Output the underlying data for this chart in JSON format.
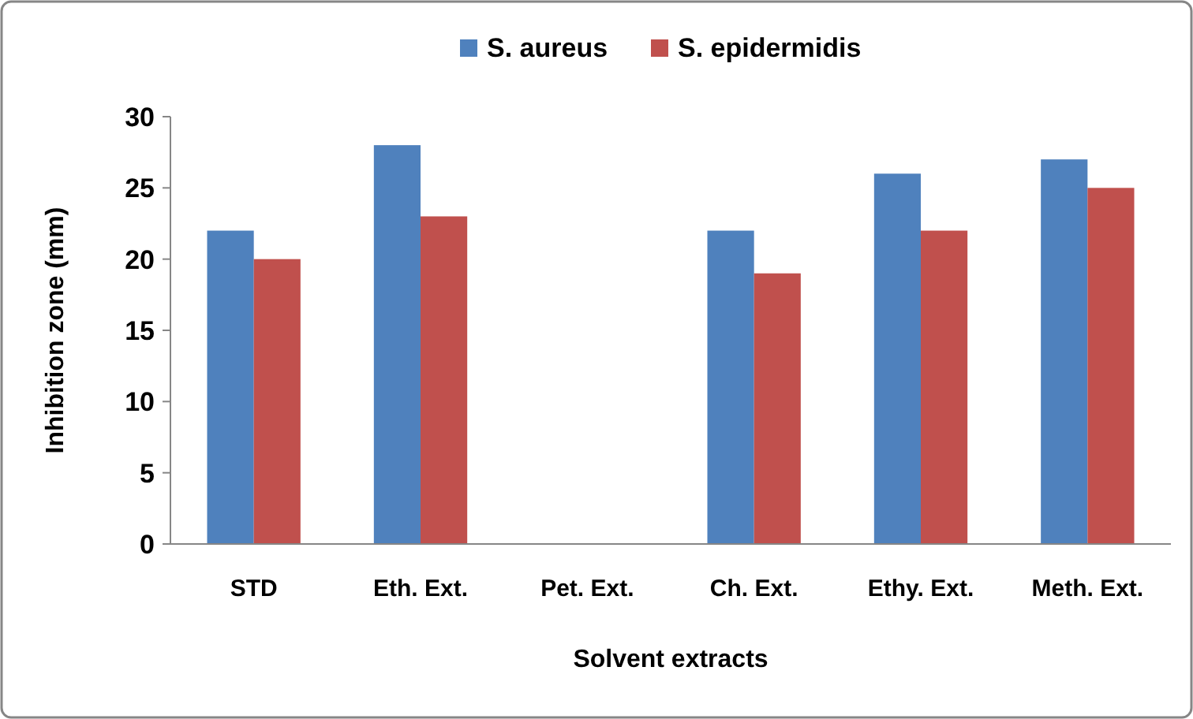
{
  "chart_data": {
    "type": "bar",
    "xlabel": "Solvent extracts",
    "ylabel": "Inhibition zone (mm)",
    "categories": [
      "STD",
      "Eth. Ext.",
      "Pet. Ext.",
      "Ch. Ext.",
      "Ethy. Ext.",
      "Meth. Ext."
    ],
    "series": [
      {
        "name": "S. aureus",
        "color": "#4f81bd",
        "values": [
          22,
          28,
          0,
          22,
          26,
          27
        ]
      },
      {
        "name": "S. epidermidis",
        "color": "#c0504d",
        "values": [
          20,
          23,
          0,
          19,
          22,
          25
        ]
      }
    ],
    "ylim": [
      0,
      30
    ],
    "yticks": [
      0,
      5,
      10,
      15,
      20,
      25,
      30
    ],
    "grid": false,
    "legend": "top"
  }
}
